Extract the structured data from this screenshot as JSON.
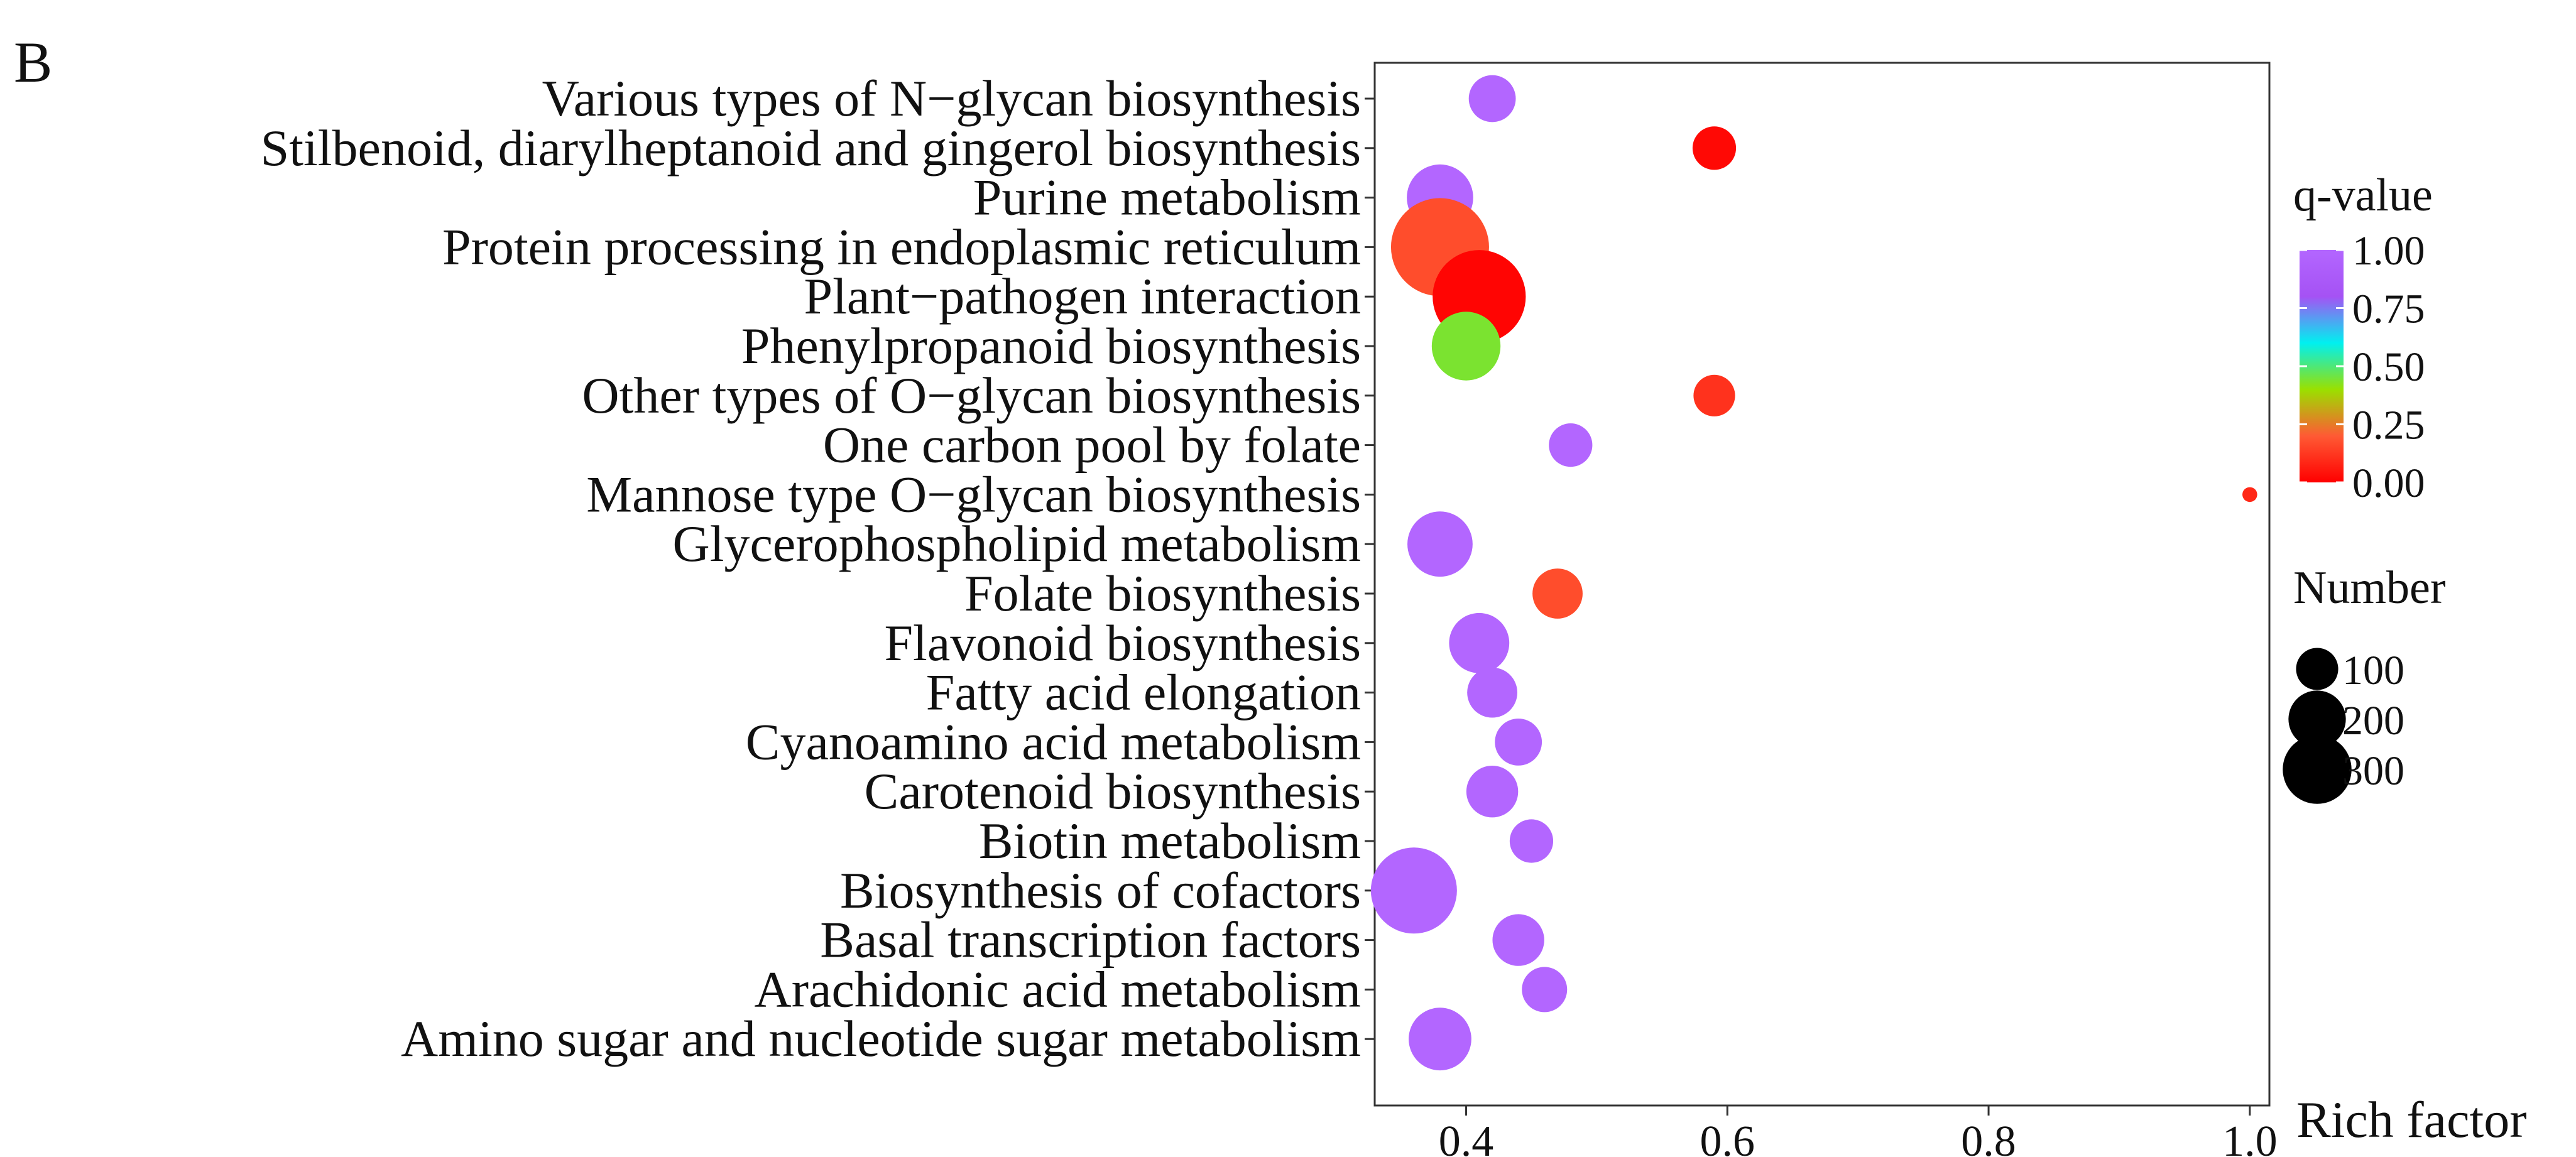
{
  "panel_label": "B",
  "chart_data": {
    "type": "scatter",
    "subtype": "bubble",
    "title": "",
    "xlabel": "Rich factor",
    "ylabel": "",
    "xlim": [
      0.33,
      1.015
    ],
    "xticks": [
      0.4,
      0.6,
      0.8,
      1.0
    ],
    "xtick_labels": [
      "0.4",
      "0.6",
      "0.8",
      "1.0"
    ],
    "grid": false,
    "categories": [
      "Various types of N−glycan biosynthesis",
      "Stilbenoid, diarylheptanoid and gingerol biosynthesis",
      "Purine metabolism",
      "Protein processing in endoplasmic reticulum",
      "Plant−pathogen interaction",
      "Phenylpropanoid biosynthesis",
      "Other types of O−glycan biosynthesis",
      "One carbon pool by folate",
      "Mannose type O−glycan biosynthesis",
      "Glycerophospholipid metabolism",
      "Folate biosynthesis",
      "Flavonoid biosynthesis",
      "Fatty acid elongation",
      "Cyanoamino acid metabolism",
      "Carotenoid biosynthesis",
      "Biotin metabolism",
      "Biosynthesis of cofactors",
      "Basal transcription factors",
      "Arachidonic acid metabolism",
      "Amino sugar and nucleotide sugar metabolism"
    ],
    "rich_factor": [
      0.42,
      0.59,
      0.38,
      0.38,
      0.41,
      0.4,
      0.59,
      0.48,
      1.0,
      0.38,
      0.47,
      0.41,
      0.42,
      0.44,
      0.42,
      0.45,
      0.36,
      0.44,
      0.46,
      0.38
    ],
    "number": [
      85,
      75,
      155,
      320,
      290,
      165,
      70,
      75,
      22,
      150,
      95,
      130,
      95,
      85,
      100,
      75,
      250,
      100,
      80,
      140
    ],
    "q_value": [
      1.0,
      0.02,
      1.0,
      0.17,
      0.01,
      0.44,
      0.11,
      1.0,
      0.09,
      1.0,
      0.17,
      1.0,
      1.0,
      1.0,
      1.0,
      1.0,
      1.0,
      1.0,
      1.0,
      1.0
    ],
    "color_legend": {
      "title": "q-value",
      "ticks": [
        0.0,
        0.25,
        0.5,
        0.75,
        1.0
      ],
      "tick_labels": [
        "0.00",
        "0.25",
        "0.50",
        "0.75",
        "1.00"
      ],
      "gradient": [
        "#ff0000",
        "#ff5a34",
        "#9ae000",
        "#00f0f0",
        "#a552f4",
        "#b366ff"
      ]
    },
    "size_legend": {
      "title": "Number",
      "values": [
        100,
        200,
        300
      ],
      "labels": [
        "100",
        "200",
        "300"
      ],
      "size_range": [
        20,
        320
      ]
    },
    "legend_position": "right"
  }
}
